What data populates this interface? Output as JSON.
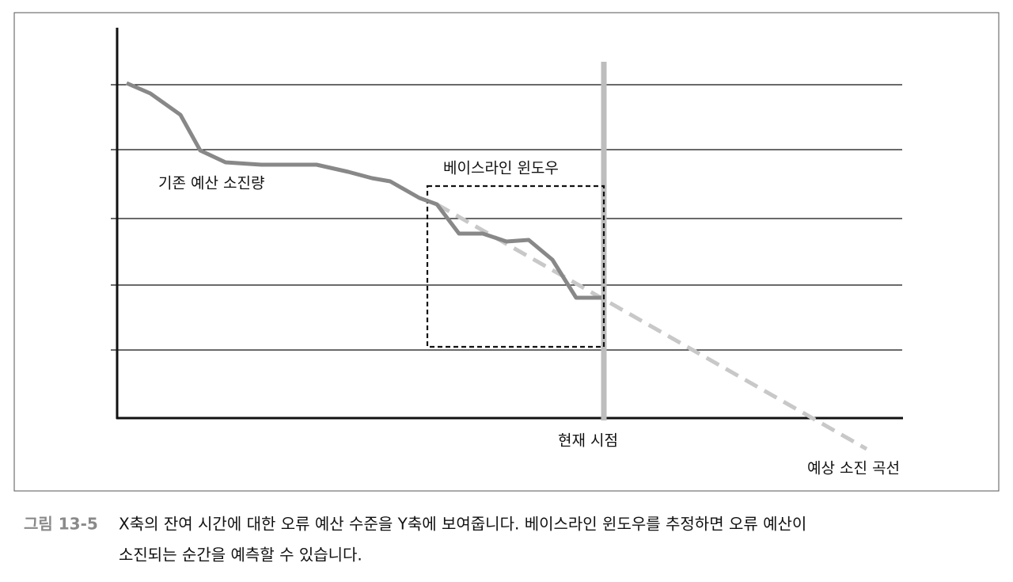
{
  "labels": {
    "baseline_burn": "기존 예산 소진량",
    "baseline_window": "베이스라인 윈도우",
    "now": "현재 시점",
    "projected_curve": "예상 소진 곡선"
  },
  "caption": {
    "number": "그림 13-5",
    "line1": "X축의 잔여 시간에 대한 오류 예산 수준을 Y축에 보여줍니다. 베이스라인 윈도우를 추정하면 오류 예산이",
    "line2": "소진되는 순간을 예측할 수 있습니다."
  }
}
